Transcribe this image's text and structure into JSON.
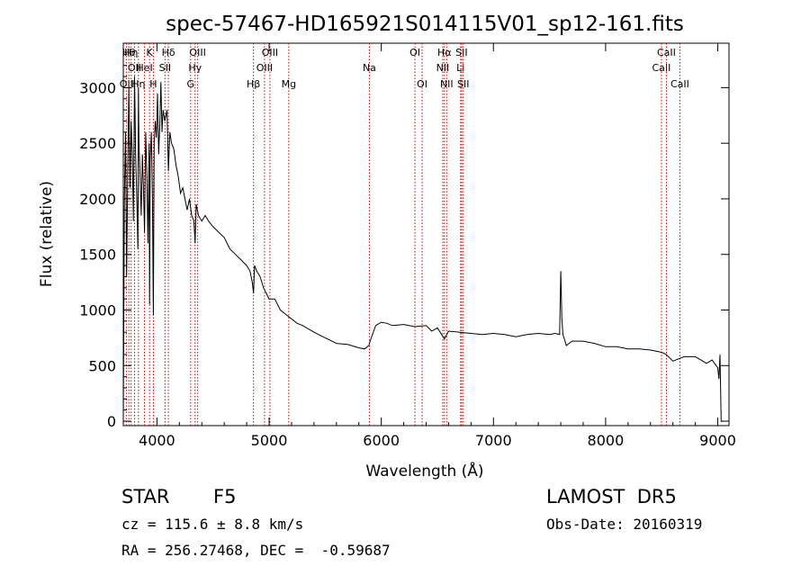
{
  "chart_data": {
    "type": "line",
    "title": "spec-57467-HD165921S014115V01_sp12-161.fits",
    "xlabel": "Wavelength (Å)",
    "ylabel": "Flux (relative)",
    "xlim": [
      3700,
      9100
    ],
    "ylim": [
      -40,
      3400
    ],
    "xticks": [
      4000,
      5000,
      6000,
      7000,
      8000,
      9000
    ],
    "yticks": [
      0,
      500,
      1000,
      1500,
      2000,
      2500,
      3000
    ],
    "line_color": "#000000",
    "marker_color": "#cc0000",
    "grid": false,
    "series": [
      {
        "x": [
          3700,
          3710,
          3720,
          3730,
          3740,
          3750,
          3760,
          3770,
          3780,
          3790,
          3800,
          3810,
          3820,
          3830,
          3835,
          3840,
          3850,
          3860,
          3870,
          3880,
          3889,
          3900,
          3910,
          3920,
          3930,
          3934,
          3940,
          3950,
          3960,
          3968,
          3975,
          3985,
          3995,
          4005,
          4015,
          4025,
          4035,
          4045,
          4055,
          4070,
          4090,
          4102,
          4115,
          4130,
          4150,
          4170,
          4190,
          4210,
          4230,
          4250,
          4270,
          4290,
          4310,
          4330,
          4340,
          4350,
          4370,
          4400,
          4430,
          4460,
          4500,
          4550,
          4600,
          4650,
          4700,
          4750,
          4800,
          4830,
          4850,
          4861,
          4870,
          4890,
          4920,
          4950,
          5000,
          5050,
          5100,
          5150,
          5200,
          5250,
          5300,
          5400,
          5500,
          5600,
          5700,
          5800,
          5850,
          5890,
          5900,
          5950,
          6000,
          6050,
          6100,
          6200,
          6300,
          6400,
          6450,
          6500,
          6563,
          6600,
          6700,
          6800,
          6900,
          7000,
          7100,
          7200,
          7300,
          7400,
          7500,
          7550,
          7590,
          7600,
          7610,
          7620,
          7650,
          7700,
          7800,
          7900,
          8000,
          8100,
          8200,
          8300,
          8400,
          8500,
          8540,
          8600,
          8700,
          8800,
          8900,
          8950,
          9000,
          9010,
          9020,
          9030,
          9050
        ],
        "y": [
          0,
          2000,
          2600,
          1300,
          2300,
          3000,
          2100,
          2700,
          2400,
          1800,
          3100,
          2400,
          2000,
          1550,
          3000,
          2500,
          2200,
          1850,
          2400,
          2100,
          1700,
          2600,
          2200,
          1600,
          2500,
          1050,
          2350,
          2600,
          2000,
          950,
          2500,
          2700,
          2550,
          2950,
          2400,
          2650,
          3050,
          2600,
          2800,
          2700,
          2800,
          2250,
          2600,
          2500,
          2450,
          2300,
          2200,
          2050,
          2100,
          2000,
          1900,
          2000,
          1850,
          1800,
          1600,
          1950,
          1850,
          1800,
          1850,
          1800,
          1750,
          1700,
          1650,
          1550,
          1500,
          1450,
          1400,
          1350,
          1250,
          1150,
          1400,
          1350,
          1300,
          1200,
          1100,
          1100,
          1000,
          960,
          920,
          880,
          860,
          800,
          750,
          700,
          690,
          660,
          650,
          680,
          720,
          860,
          890,
          880,
          860,
          870,
          850,
          860,
          810,
          840,
          740,
          810,
          800,
          790,
          780,
          790,
          780,
          760,
          780,
          790,
          780,
          790,
          780,
          1350,
          920,
          780,
          680,
          720,
          720,
          700,
          670,
          670,
          650,
          650,
          640,
          620,
          600,
          540,
          580,
          580,
          520,
          550,
          480,
          380,
          600,
          0,
          0
        ]
      }
    ],
    "line_markers": [
      {
        "x": 3727,
        "label": "OII",
        "row": 3
      },
      {
        "x": 3750,
        "label": "Hθ",
        "row": 1
      },
      {
        "x": 3770,
        "label": "Hη",
        "row": 1
      },
      {
        "x": 3800,
        "label": "OII",
        "row": 2
      },
      {
        "x": 3835,
        "label": "Hη",
        "row": 3
      },
      {
        "x": 3889,
        "label": "HeI",
        "row": 2
      },
      {
        "x": 3934,
        "label": "K",
        "row": 1
      },
      {
        "x": 3968,
        "label": "H",
        "row": 3
      },
      {
        "x": 4072,
        "label": "SII",
        "row": 2
      },
      {
        "x": 4102,
        "label": "Hδ",
        "row": 1
      },
      {
        "x": 4300,
        "label": "G",
        "row": 3
      },
      {
        "x": 4340,
        "label": "Hγ",
        "row": 2
      },
      {
        "x": 4363,
        "label": "OIII",
        "row": 1
      },
      {
        "x": 4861,
        "label": "Hβ",
        "row": 3
      },
      {
        "x": 4959,
        "label": "OIII",
        "row": 2
      },
      {
        "x": 5007,
        "label": "OIII",
        "row": 1
      },
      {
        "x": 5175,
        "label": "Mg",
        "row": 3
      },
      {
        "x": 5894,
        "label": "Na",
        "row": 2
      },
      {
        "x": 6300,
        "label": "OI",
        "row": 1
      },
      {
        "x": 6364,
        "label": "OI",
        "row": 3
      },
      {
        "x": 6548,
        "label": "NII",
        "row": 2
      },
      {
        "x": 6563,
        "label": "Hα",
        "row": 1
      },
      {
        "x": 6583,
        "label": "NII",
        "row": 3
      },
      {
        "x": 6707,
        "label": "Li",
        "row": 2
      },
      {
        "x": 6716,
        "label": "SII",
        "row": 1
      },
      {
        "x": 6731,
        "label": "SII",
        "row": 3
      },
      {
        "x": 8498,
        "label": "CaII",
        "row": 2
      },
      {
        "x": 8542,
        "label": "CaII",
        "row": 1
      },
      {
        "x": 8662,
        "label": "CaII",
        "row": 3
      }
    ]
  },
  "info": {
    "object_class": "STAR",
    "subclass": "F5",
    "survey": "LAMOST  DR5",
    "redshift": "cz = 115.6 ± 8.8 km/s",
    "obs_date": "Obs-Date: 20160319",
    "coords": "RA = 256.27468, DEC =  -0.59687"
  }
}
